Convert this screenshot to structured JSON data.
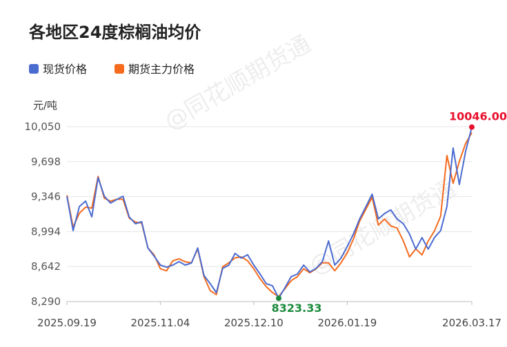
{
  "chart_data": {
    "type": "line",
    "title": "各地区24度棕榈油均价",
    "y_unit": "元/吨",
    "watermark": "@同花顺期货通",
    "categories": [
      "2025.09.19",
      null,
      null,
      null,
      null,
      null,
      null,
      null,
      null,
      null,
      null,
      null,
      null,
      null,
      null,
      "2025.11.04",
      null,
      null,
      null,
      null,
      null,
      null,
      null,
      null,
      null,
      null,
      null,
      null,
      null,
      null,
      "2025.12.10",
      null,
      null,
      null,
      null,
      null,
      null,
      null,
      null,
      null,
      null,
      null,
      null,
      null,
      null,
      "2026.01.19",
      null,
      null,
      null,
      null,
      null,
      null,
      null,
      null,
      null,
      null,
      null,
      null,
      null,
      null,
      null,
      null,
      null,
      null,
      null,
      "2026.03.17"
    ],
    "series": [
      {
        "name": "现货价格",
        "color": "#4a6bd0",
        "values": [
          9350,
          9004,
          9246,
          9302,
          9142,
          9537,
          9350,
          9281,
          9316,
          9350,
          9142,
          9073,
          9094,
          8830,
          8747,
          8657,
          8636,
          8657,
          8692,
          8657,
          8678,
          8830,
          8553,
          8470,
          8380,
          8623,
          8657,
          8775,
          8727,
          8761,
          8657,
          8567,
          8470,
          8449,
          8323.33,
          8429,
          8540,
          8567,
          8657,
          8588,
          8623,
          8692,
          8900,
          8657,
          8727,
          8844,
          8969,
          9122,
          9246,
          9371,
          9122,
          9177,
          9212,
          9122,
          9073,
          8969,
          8817,
          8934,
          8817,
          8934,
          9004,
          9246,
          9835,
          9468,
          9801,
          10046
        ]
      },
      {
        "name": "期货主力价格",
        "color": "#f56a1d",
        "values": [
          9360,
          9040,
          9180,
          9240,
          9230,
          9550,
          9330,
          9300,
          9320,
          9320,
          9130,
          9090,
          9080,
          8830,
          8760,
          8620,
          8600,
          8700,
          8720,
          8690,
          8680,
          8820,
          8540,
          8400,
          8360,
          8640,
          8680,
          8730,
          8740,
          8700,
          8620,
          8520,
          8440,
          8380,
          8340,
          8420,
          8500,
          8540,
          8620,
          8580,
          8620,
          8680,
          8680,
          8600,
          8680,
          8780,
          8920,
          9100,
          9220,
          9340,
          9060,
          9120,
          9050,
          9030,
          8900,
          8740,
          8820,
          8760,
          8900,
          9000,
          9150,
          9760,
          9480,
          9700,
          9880,
          9990
        ]
      }
    ],
    "max_label": "10046.00",
    "min_label": "8323.33",
    "ylim": [
      8290,
      10050
    ],
    "yticks": [
      {
        "value": 8290,
        "label": "8,290"
      },
      {
        "value": 8642,
        "label": "8,642"
      },
      {
        "value": 8994,
        "label": "8,994"
      },
      {
        "value": 9346,
        "label": "9,346"
      },
      {
        "value": 9698,
        "label": "9,698"
      },
      {
        "value": 10050,
        "label": "10,050"
      }
    ],
    "grid": true,
    "legend": "top-left"
  }
}
